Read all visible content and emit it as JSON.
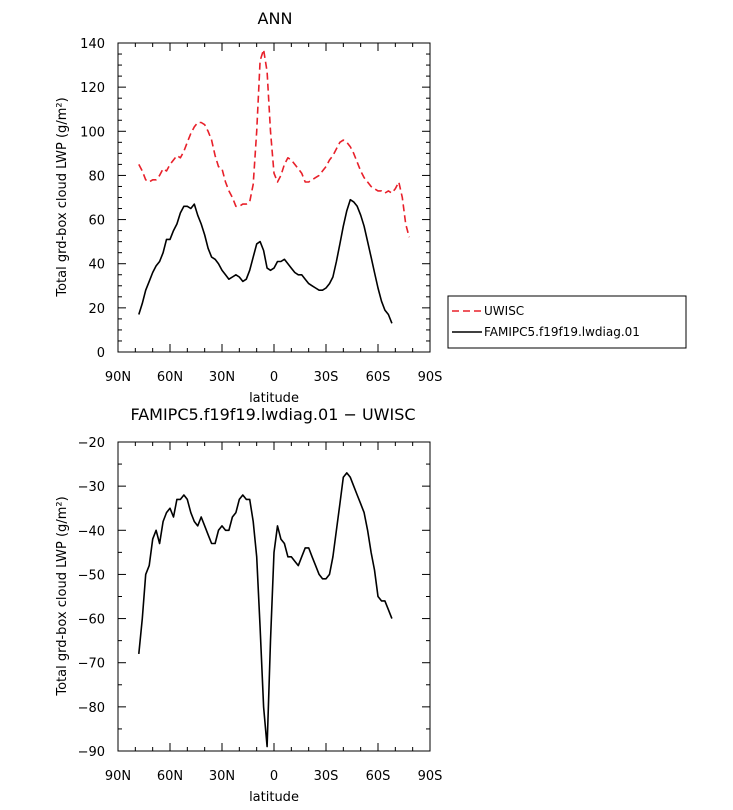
{
  "chart_data": [
    {
      "type": "line",
      "title": "ANN",
      "xlabel": "latitude",
      "ylabel": "Total grd-box cloud LWP (g/m²)",
      "xlim": [
        90,
        -90
      ],
      "ylim": [
        0,
        140
      ],
      "xticks": [
        90,
        60,
        30,
        0,
        -30,
        -60,
        -90
      ],
      "xtick_labels": [
        "90N",
        "60N",
        "30N",
        "0",
        "30S",
        "60S",
        "90S"
      ],
      "yticks": [
        0,
        20,
        40,
        60,
        80,
        100,
        120,
        140
      ],
      "grid": false,
      "legend": "right",
      "series": [
        {
          "name": "UWISC",
          "color": "#e8202a",
          "dash": "dashed",
          "x": [
            78,
            76,
            74,
            72,
            70,
            68,
            66,
            64,
            62,
            60,
            58,
            56,
            54,
            52,
            50,
            48,
            46,
            44,
            42,
            40,
            38,
            36,
            34,
            32,
            30,
            28,
            26,
            24,
            22,
            20,
            18,
            16,
            14,
            12,
            10,
            8,
            6,
            4,
            2,
            0,
            -2,
            -4,
            -6,
            -8,
            -10,
            -12,
            -14,
            -16,
            -18,
            -20,
            -22,
            -24,
            -26,
            -28,
            -30,
            -32,
            -34,
            -36,
            -38,
            -40,
            -42,
            -44,
            -46,
            -48,
            -50,
            -52,
            -54,
            -56,
            -58,
            -60,
            -62,
            -64,
            -66,
            -68,
            -70,
            -72,
            -74,
            -76,
            -78
          ],
          "values": [
            85,
            82,
            78,
            77,
            78,
            78,
            80,
            83,
            82,
            85,
            87,
            89,
            88,
            91,
            95,
            99,
            102,
            104,
            104,
            103,
            100,
            96,
            89,
            84,
            83,
            77,
            73,
            70,
            66,
            66,
            67,
            67,
            68,
            76,
            100,
            132,
            137,
            127,
            100,
            81,
            77,
            80,
            85,
            88,
            87,
            85,
            83,
            81,
            77,
            77,
            78,
            79,
            80,
            82,
            84,
            87,
            89,
            92,
            95,
            96,
            95,
            93,
            90,
            86,
            82,
            79,
            77,
            75,
            74,
            73,
            73,
            72,
            73,
            72,
            74,
            77,
            70,
            58,
            52
          ]
        },
        {
          "name": "FAMIPC5.f19f19.lwdiag.01",
          "color": "#000000",
          "dash": "solid",
          "x": [
            78,
            76,
            74,
            72,
            70,
            68,
            66,
            64,
            62,
            60,
            58,
            56,
            54,
            52,
            50,
            48,
            46,
            44,
            42,
            40,
            38,
            36,
            34,
            32,
            30,
            28,
            26,
            24,
            22,
            20,
            18,
            16,
            14,
            12,
            10,
            8,
            6,
            4,
            2,
            0,
            -2,
            -4,
            -6,
            -8,
            -10,
            -12,
            -14,
            -16,
            -18,
            -20,
            -22,
            -24,
            -26,
            -28,
            -30,
            -32,
            -34,
            -36,
            -38,
            -40,
            -42,
            -44,
            -46,
            -48,
            -50,
            -52,
            -54,
            -56,
            -58,
            -60,
            -62,
            -64,
            -66,
            -68
          ],
          "values": [
            17,
            22,
            28,
            32,
            36,
            39,
            41,
            45,
            51,
            51,
            55,
            58,
            63,
            66,
            66,
            65,
            67,
            62,
            58,
            53,
            47,
            43,
            42,
            40,
            37,
            35,
            33,
            34,
            35,
            34,
            32,
            33,
            37,
            43,
            49,
            50,
            46,
            38,
            37,
            38,
            41,
            41,
            42,
            40,
            38,
            36,
            35,
            35,
            33,
            31,
            30,
            29,
            28,
            28,
            29,
            31,
            34,
            41,
            49,
            57,
            64,
            69,
            68,
            66,
            62,
            57,
            50,
            43,
            36,
            29,
            23,
            19,
            17,
            13
          ]
        }
      ]
    },
    {
      "type": "line",
      "title": "FAMIPC5.f19f19.lwdiag.01 − UWISC",
      "xlabel": "latitude",
      "ylabel": "Total grd-box cloud LWP (g/m²)",
      "xlim": [
        90,
        -90
      ],
      "ylim": [
        -90,
        -20
      ],
      "xticks": [
        90,
        60,
        30,
        0,
        -30,
        -60,
        -90
      ],
      "xtick_labels": [
        "90N",
        "60N",
        "30N",
        "0",
        "30S",
        "60S",
        "90S"
      ],
      "yticks": [
        -90,
        -80,
        -70,
        -60,
        -50,
        -40,
        -30,
        -20
      ],
      "grid": false,
      "series": [
        {
          "color": "#000000",
          "dash": "solid",
          "x": [
            78,
            76,
            74,
            72,
            70,
            68,
            66,
            64,
            62,
            60,
            58,
            56,
            54,
            52,
            50,
            48,
            46,
            44,
            42,
            40,
            38,
            36,
            34,
            32,
            30,
            28,
            26,
            24,
            22,
            20,
            18,
            16,
            14,
            12,
            10,
            8,
            6,
            4,
            2,
            0,
            -2,
            -4,
            -6,
            -8,
            -10,
            -12,
            -14,
            -16,
            -18,
            -20,
            -22,
            -24,
            -26,
            -28,
            -30,
            -32,
            -34,
            -36,
            -38,
            -40,
            -42,
            -44,
            -46,
            -48,
            -50,
            -52,
            -54,
            -56,
            -58,
            -60,
            -62,
            -64,
            -66,
            -68
          ],
          "values": [
            -68,
            -60,
            -50,
            -48,
            -42,
            -40,
            -43,
            -38,
            -36,
            -35,
            -37,
            -33,
            -33,
            -32,
            -33,
            -36,
            -38,
            -39,
            -37,
            -39,
            -41,
            -43,
            -43,
            -40,
            -39,
            -40,
            -40,
            -37,
            -36,
            -33,
            -32,
            -33,
            -33,
            -38,
            -46,
            -62,
            -80,
            -89,
            -65,
            -45,
            -39,
            -42,
            -43,
            -46,
            -46,
            -47,
            -48,
            -46,
            -44,
            -44,
            -46,
            -48,
            -50,
            -51,
            -51,
            -50,
            -46,
            -40,
            -34,
            -28,
            -27,
            -28,
            -30,
            -32,
            -34,
            -36,
            -40,
            -45,
            -49,
            -55,
            -56,
            -56,
            -58,
            -60
          ]
        }
      ]
    }
  ]
}
